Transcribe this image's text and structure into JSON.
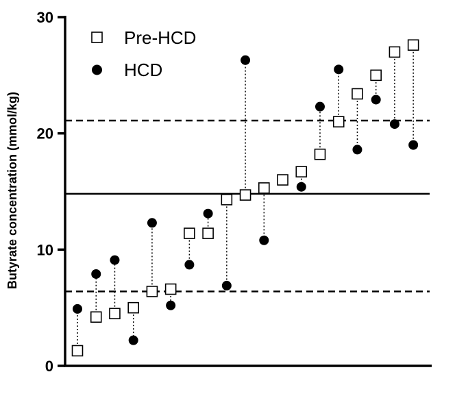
{
  "chart_data": {
    "type": "scatter",
    "title": "",
    "xlabel": "",
    "ylabel": "Butyrate concentration (mmol/kg)",
    "ylim": [
      0,
      30
    ],
    "yticks": [
      "0",
      "10",
      "20",
      "30"
    ],
    "grid": false,
    "legend_position": "top-left",
    "reference_lines": [
      {
        "style": "solid",
        "y": 14.8
      },
      {
        "style": "dashed",
        "y": 21.1
      },
      {
        "style": "dashed",
        "y": 6.4
      }
    ],
    "series": [
      {
        "name": "Pre-HCD",
        "marker": "open-square",
        "values": [
          1.3,
          4.2,
          4.5,
          5.0,
          6.4,
          6.6,
          11.4,
          11.4,
          14.3,
          14.7,
          15.3,
          16.0,
          16.7,
          18.2,
          21.0,
          23.4,
          25.0,
          27.0,
          27.6
        ]
      },
      {
        "name": "HCD",
        "marker": "filled-circle",
        "values": [
          4.9,
          7.9,
          9.1,
          2.2,
          12.3,
          5.2,
          8.7,
          13.1,
          6.9,
          26.3,
          10.8,
          16.0,
          15.4,
          22.3,
          25.5,
          18.6,
          22.9,
          20.8,
          19.0
        ]
      }
    ]
  },
  "colors": {
    "ink": "#000000",
    "background": "#ffffff"
  }
}
